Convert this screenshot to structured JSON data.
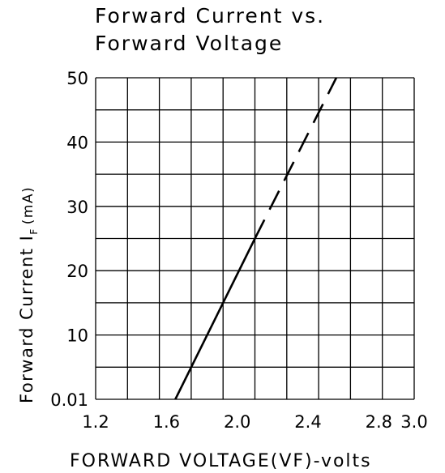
{
  "chart_data": {
    "type": "line",
    "title_line1": "Forward Current vs.",
    "title_line2": "Forward Voltage",
    "ylabel_main": "Forward Current I",
    "ylabel_sub": "F",
    "ylabel_unit": "(mA)",
    "xlabel": "FORWARD VOLTAGE(VF)-volts",
    "xlim": [
      1.2,
      3.0
    ],
    "ylim": [
      0,
      50
    ],
    "x_ticks": [
      "1.2",
      "1.6",
      "2.0",
      "2.4",
      "2.8",
      "3.0"
    ],
    "x_tick_values": [
      1.2,
      1.6,
      2.0,
      2.4,
      2.8,
      3.0
    ],
    "y_ticks": [
      "0.01",
      "10",
      "20",
      "30",
      "40",
      "50"
    ],
    "y_tick_values": [
      0,
      10,
      20,
      30,
      40,
      50
    ],
    "grid": true,
    "series": [
      {
        "style": "solid",
        "x": [
          1.65,
          2.1
        ],
        "y": [
          0,
          25
        ]
      },
      {
        "style": "dashed",
        "x": [
          2.1,
          2.56
        ],
        "y": [
          25,
          50
        ]
      }
    ]
  }
}
